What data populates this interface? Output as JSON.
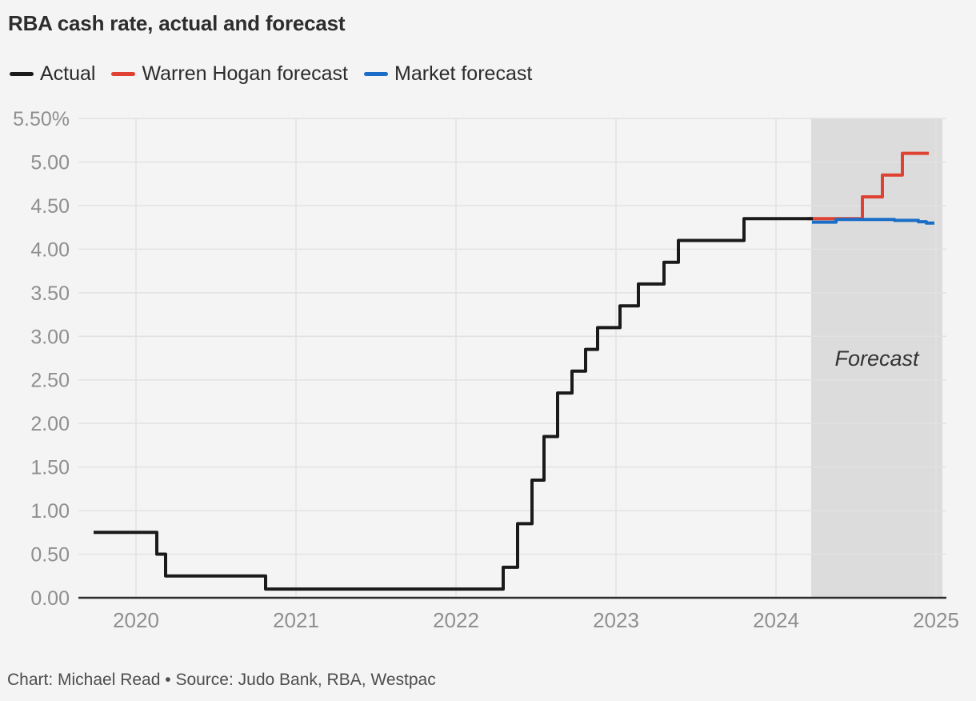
{
  "title": "RBA cash rate, actual and forecast",
  "footer": "Chart: Michael Read • Source: Judo Bank, RBA, Westpac",
  "chart_data": {
    "type": "step-line",
    "title": "RBA cash rate, actual and forecast",
    "xlabel": "",
    "ylabel": "",
    "unit": "%",
    "xlim": [
      2019.64,
      2025.065
    ],
    "ylim": [
      0,
      5.5
    ],
    "grid": true,
    "legend_position": "top-left",
    "x_ticks": [
      {
        "v": 2020,
        "label": "2020"
      },
      {
        "v": 2021,
        "label": "2021"
      },
      {
        "v": 2022,
        "label": "2022"
      },
      {
        "v": 2023,
        "label": "2023"
      },
      {
        "v": 2024,
        "label": "2024"
      },
      {
        "v": 2025,
        "label": "2025"
      }
    ],
    "y_ticks": [
      {
        "v": 5.5,
        "label": "5.50%"
      },
      {
        "v": 5.0,
        "label": "5.00"
      },
      {
        "v": 4.5,
        "label": "4.50"
      },
      {
        "v": 4.0,
        "label": "4.00"
      },
      {
        "v": 3.5,
        "label": "3.50"
      },
      {
        "v": 3.0,
        "label": "3.00"
      },
      {
        "v": 2.5,
        "label": "2.50"
      },
      {
        "v": 2.0,
        "label": "2.00"
      },
      {
        "v": 1.5,
        "label": "1.50"
      },
      {
        "v": 1.0,
        "label": "1.00"
      },
      {
        "v": 0.5,
        "label": "0.50"
      },
      {
        "v": 0.0,
        "label": "0.00"
      }
    ],
    "forecast_band": {
      "from": 2024.22,
      "to": 2025.04,
      "label": "Forecast"
    },
    "series": [
      {
        "name": "Actual",
        "color": "#1a1a1a",
        "end": 2024.23,
        "steps": [
          [
            2019.735,
            0.75
          ],
          [
            2020.13,
            0.5
          ],
          [
            2020.185,
            0.25
          ],
          [
            2020.81,
            0.1
          ],
          [
            2022.295,
            0.35
          ],
          [
            2022.385,
            0.85
          ],
          [
            2022.475,
            1.35
          ],
          [
            2022.55,
            1.85
          ],
          [
            2022.635,
            2.35
          ],
          [
            2022.725,
            2.6
          ],
          [
            2022.81,
            2.85
          ],
          [
            2022.885,
            3.1
          ],
          [
            2023.025,
            3.35
          ],
          [
            2023.14,
            3.6
          ],
          [
            2023.3,
            3.85
          ],
          [
            2023.39,
            4.1
          ],
          [
            2023.8,
            4.35
          ]
        ]
      },
      {
        "name": "Warren Hogan forecast",
        "color": "#df4232",
        "end": 2024.955,
        "steps": [
          [
            2024.195,
            4.35
          ],
          [
            2024.54,
            4.6
          ],
          [
            2024.665,
            4.85
          ],
          [
            2024.79,
            5.1
          ]
        ]
      },
      {
        "name": "Market forecast",
        "color": "#1b6ec8",
        "end": 2024.99,
        "steps": [
          [
            2024.225,
            4.31
          ],
          [
            2024.375,
            4.34
          ],
          [
            2024.74,
            4.33
          ],
          [
            2024.89,
            4.315
          ],
          [
            2024.94,
            4.3
          ]
        ]
      }
    ],
    "style": {
      "background": "#f4f4f4",
      "grid_color": "#e2e2e2",
      "band_grid_color": "#e1e1e1",
      "band_color": "#dcdcdc",
      "axis_color": "#2e2e2e",
      "tick_label_color": "#8f8f8f",
      "forecast_label_color": "#333333"
    }
  }
}
